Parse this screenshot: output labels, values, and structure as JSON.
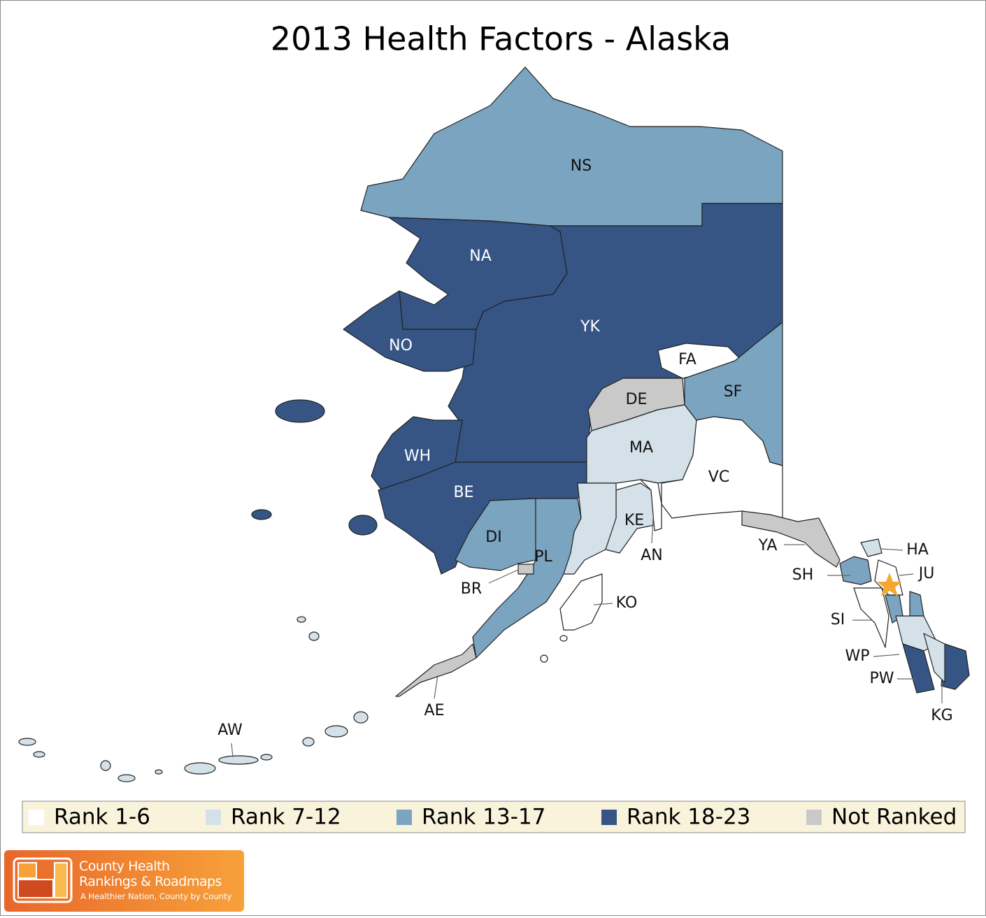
{
  "title": "2013 Health Factors - Alaska",
  "legend": [
    {
      "label": "Rank 1-6",
      "color": "#ffffff"
    },
    {
      "label": "Rank 7-12",
      "color": "#d4e1e9"
    },
    {
      "label": "Rank 13-17",
      "color": "#7ba4c0"
    },
    {
      "label": "Rank 18-23",
      "color": "#365585"
    },
    {
      "label": "Not Ranked",
      "color": "#c9c9c9"
    }
  ],
  "regions": [
    {
      "label": "NS",
      "color": "#7ba4c0"
    },
    {
      "label": "NA",
      "color": "#365585"
    },
    {
      "label": "YK",
      "color": "#365585"
    },
    {
      "label": "FA",
      "color": "#ffffff"
    },
    {
      "label": "NO",
      "color": "#365585"
    },
    {
      "label": "WH",
      "color": "#365585"
    },
    {
      "label": "BE",
      "color": "#365585"
    },
    {
      "label": "DI",
      "color": "#7ba4c0"
    },
    {
      "label": "PL",
      "color": "#7ba4c0"
    },
    {
      "label": "BR",
      "color": "#c9c9c9"
    },
    {
      "label": "DE",
      "color": "#c9c9c9"
    },
    {
      "label": "MA",
      "color": "#d4e1e9"
    },
    {
      "label": "SF",
      "color": "#7ba4c0"
    },
    {
      "label": "VC",
      "color": "#ffffff"
    },
    {
      "label": "KE",
      "color": "#d4e1e9"
    },
    {
      "label": "AN",
      "color": "#ffffff"
    },
    {
      "label": "KO",
      "color": "#ffffff"
    },
    {
      "label": "AE",
      "color": "#c9c9c9"
    },
    {
      "label": "AW",
      "color": "#d4e1e9"
    },
    {
      "label": "YA",
      "color": "#c9c9c9"
    },
    {
      "label": "SH",
      "color": "#7ba4c0"
    },
    {
      "label": "HA",
      "color": "#d4e1e9"
    },
    {
      "label": "JU",
      "color": "#ffffff"
    },
    {
      "label": "SI",
      "color": "#ffffff"
    },
    {
      "label": "WP",
      "color": "#d4e1e9"
    },
    {
      "label": "PW",
      "color": "#365585"
    },
    {
      "label": "KG",
      "color": "#d4e1e9"
    }
  ],
  "logo": {
    "line1": "County Health",
    "line2": "Rankings & Roadmaps",
    "tagline": "A Healthier Nation, County by County"
  }
}
